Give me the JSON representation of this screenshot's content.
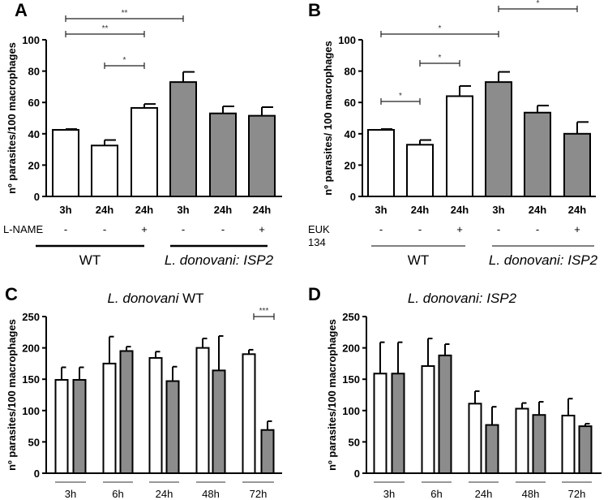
{
  "colors": {
    "wt": "#ffffff",
    "isp2": "#8c8c8c",
    "stroke": "#000000"
  },
  "chart_data": [
    {
      "panel": "A",
      "type": "bar",
      "ylabel": "nº parasites/100 macrophages",
      "ylim": [
        0,
        100
      ],
      "yticks": [
        0,
        20,
        40,
        60,
        80,
        100
      ],
      "categories": [
        "3h",
        "24h",
        "24h",
        "3h",
        "24h",
        "24h"
      ],
      "treatment_label": "L-NAME",
      "treatment_label2": "",
      "treatment": [
        "-",
        "-",
        "+",
        "-",
        "-",
        "+"
      ],
      "groups": [
        {
          "label": "WT",
          "italic": false,
          "bars": [
            0,
            1,
            2
          ]
        },
        {
          "label": "L. donovani: ISP2",
          "italic": true,
          "bars": [
            3,
            4,
            5
          ]
        }
      ],
      "strain": [
        "wt",
        "wt",
        "wt",
        "isp2",
        "isp2",
        "isp2"
      ],
      "values": [
        42.5,
        32.5,
        56.5,
        73,
        53,
        51.5
      ],
      "errors": [
        0.5,
        3.5,
        2.5,
        6.5,
        4.5,
        5.5
      ],
      "significance": [
        {
          "from": 0,
          "to": 3,
          "label": "**",
          "level": 3
        },
        {
          "from": 0,
          "to": 2,
          "label": "**",
          "level": 2
        },
        {
          "from": 1,
          "to": 2,
          "label": "*",
          "level": 1
        }
      ]
    },
    {
      "panel": "B",
      "type": "bar",
      "ylabel": "nº parasites/ 100 macrophages",
      "ylim": [
        0,
        100
      ],
      "yticks": [
        0,
        20,
        40,
        60,
        80,
        100
      ],
      "categories": [
        "3h",
        "24h",
        "24h",
        "3h",
        "24h",
        "24h"
      ],
      "treatment_label": "EUK",
      "treatment_label2": "134",
      "treatment": [
        "-",
        "-",
        "+",
        "-",
        "-",
        "+"
      ],
      "groups": [
        {
          "label": "WT",
          "italic": false,
          "bars": [
            0,
            1,
            2
          ]
        },
        {
          "label": "L. donovani: ISP2",
          "italic": true,
          "bars": [
            3,
            4,
            5
          ]
        }
      ],
      "strain": [
        "wt",
        "wt",
        "wt",
        "isp2",
        "isp2",
        "isp2"
      ],
      "values": [
        42.5,
        33,
        64,
        73,
        53.5,
        40
      ],
      "errors": [
        0.5,
        3,
        6.5,
        6.5,
        4.5,
        7.5
      ],
      "significance": [
        {
          "from": 3,
          "to": 5,
          "label": "*",
          "level": 4
        },
        {
          "from": 0,
          "to": 3,
          "label": "*",
          "level": 3
        },
        {
          "from": 1,
          "to": 2,
          "label": "*",
          "level": 2
        },
        {
          "from": 0,
          "to": 1,
          "label": "*",
          "level": 1
        }
      ]
    },
    {
      "panel": "C",
      "type": "bar",
      "title_italic": "L. donovani",
      "title_rest": " WT",
      "ylabel": "nº parasites/100 macrophages",
      "ylim": [
        0,
        250
      ],
      "yticks": [
        0,
        50,
        100,
        150,
        200,
        250
      ],
      "categories": [
        "3h",
        "6h",
        "24h",
        "48h",
        "72h"
      ],
      "series": [
        {
          "name": "white",
          "color": "wt",
          "values": [
            149,
            175,
            184,
            200,
            190
          ],
          "errors": [
            20,
            43,
            10,
            15,
            7
          ]
        },
        {
          "name": "grey",
          "color": "isp2",
          "values": [
            149,
            195,
            147,
            164,
            69
          ],
          "errors": [
            20,
            7,
            23,
            55,
            14
          ]
        }
      ],
      "significance": [
        {
          "category": 4,
          "label": "***"
        }
      ]
    },
    {
      "panel": "D",
      "type": "bar",
      "title_italic": "L. donovani: ISP2",
      "title_rest": "",
      "ylabel": "nº parasites/100 macrophages",
      "ylim": [
        0,
        250
      ],
      "yticks": [
        0,
        50,
        100,
        150,
        200,
        250
      ],
      "categories": [
        "3h",
        "6h",
        "24h",
        "48h",
        "72h"
      ],
      "series": [
        {
          "name": "white",
          "color": "wt",
          "values": [
            159,
            171,
            111,
            103,
            92
          ],
          "errors": [
            50,
            44,
            20,
            9,
            27
          ]
        },
        {
          "name": "grey",
          "color": "isp2",
          "values": [
            159,
            188,
            77,
            93,
            75
          ],
          "errors": [
            50,
            18,
            29,
            21,
            4
          ]
        }
      ],
      "significance": []
    }
  ]
}
